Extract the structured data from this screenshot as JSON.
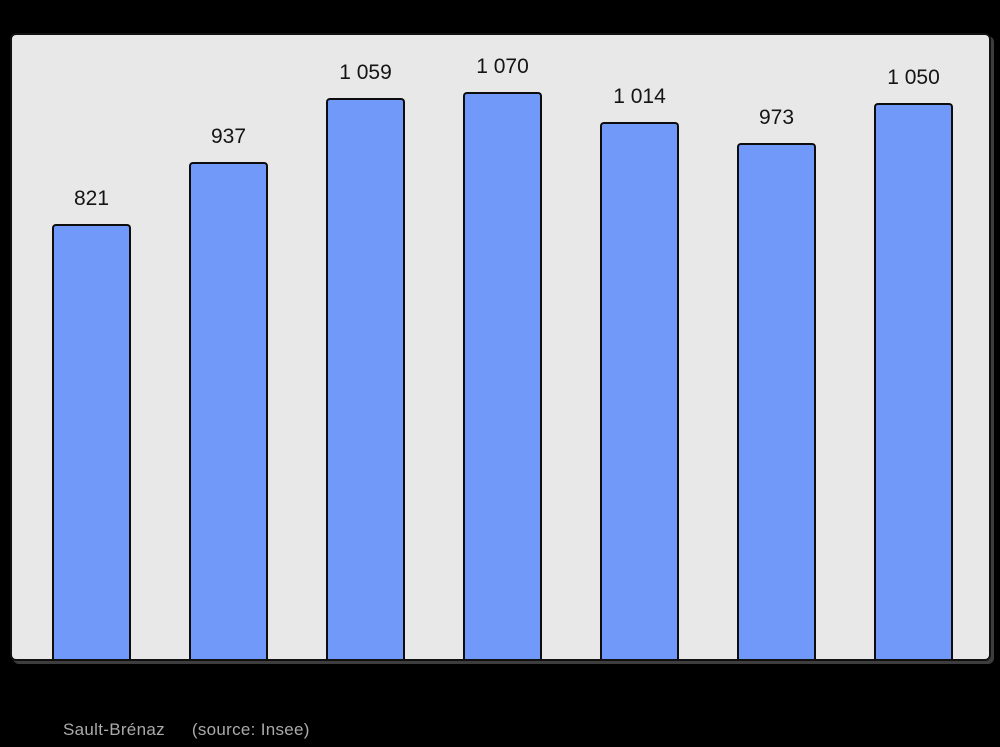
{
  "chart_data": {
    "type": "bar",
    "values": [
      821,
      937,
      1059,
      1070,
      1014,
      973,
      1050
    ],
    "value_labels": [
      "821",
      "937",
      "1 059",
      "1 070",
      "1 014",
      "973",
      "1 050"
    ],
    "title": "",
    "xlabel": "",
    "ylabel": "",
    "ylim": [
      0,
      1170
    ],
    "grid": false,
    "legend": false,
    "bar_color": "#7099fa",
    "bar_border_color": "#0d0d0d",
    "value_label_color": "#141414",
    "plot_background_color": "#e8e8e8",
    "plot_border_color": "#101010",
    "page_background_color": "#000000"
  },
  "caption": {
    "commune_label": "Sault-Brénaz",
    "source_label": "(source: Insee)",
    "color": "#aaaaaa"
  }
}
